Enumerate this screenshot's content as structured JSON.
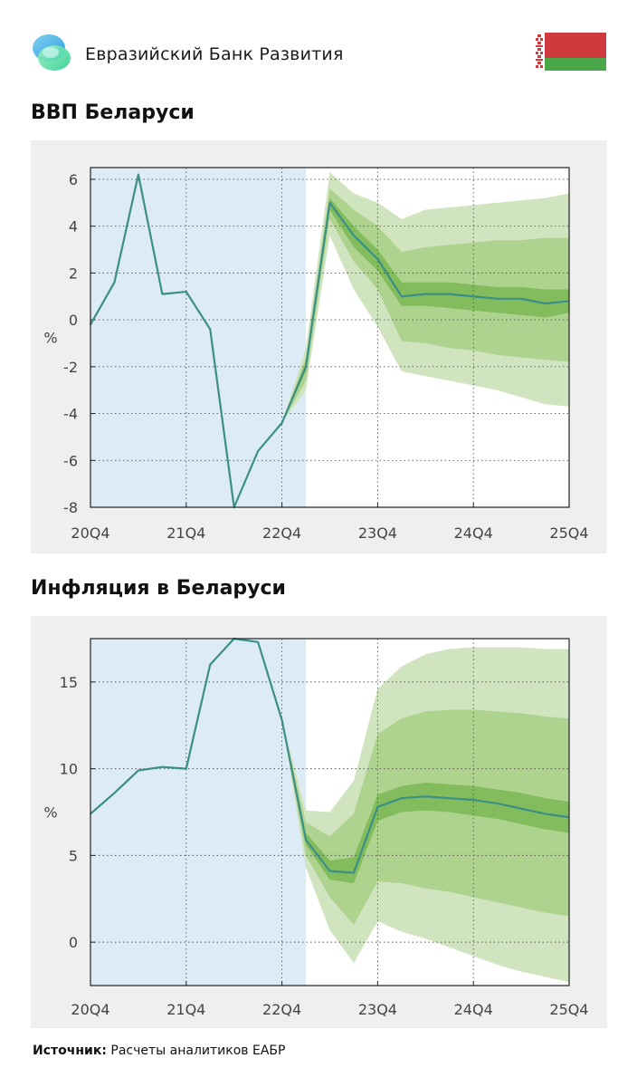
{
  "header": {
    "bank_name": "Евразийский Банк Развития",
    "logo_icon": "eadb-logo-icon",
    "flag_icon": "belarus-flag-icon"
  },
  "source": {
    "label": "Источник:",
    "text": "Расчеты аналитиков ЕАБР"
  },
  "colors": {
    "history_shade": "#dcebf6",
    "line": "#3b8f86",
    "band_outer": "#cfe4bf",
    "band_mid": "#aed38f",
    "band_inner": "#82bc5c"
  },
  "chart_data": [
    {
      "id": "gdp",
      "type": "line",
      "title": "ВВП Беларуси",
      "ylabel": "%",
      "xlabel": "",
      "x_tick_labels": [
        "20Q4",
        "21Q4",
        "22Q4",
        "23Q4",
        "24Q4",
        "25Q4"
      ],
      "xlim": [
        "2020Q4",
        "2025Q4"
      ],
      "ylim": [
        -8,
        6.5
      ],
      "y_ticks": [
        -8,
        -6,
        -4,
        -2,
        0,
        2,
        4,
        6
      ],
      "y_tick_labels": [
        "-8",
        "-6",
        "-4",
        "-2",
        "0",
        "2",
        "4",
        "6"
      ],
      "grid": true,
      "history_shade": [
        "2020Q4",
        "2023Q1"
      ],
      "series": [
        {
          "x": [
            "2020Q4",
            "2021Q1",
            "2021Q2",
            "2021Q3",
            "2021Q4",
            "2022Q1",
            "2022Q2",
            "2022Q3",
            "2022Q4",
            "2023Q1",
            "2023Q2",
            "2023Q3",
            "2023Q4",
            "2024Q1",
            "2024Q2",
            "2024Q3",
            "2024Q4",
            "2025Q1",
            "2025Q2",
            "2025Q3",
            "2025Q4"
          ],
          "values": [
            -0.2,
            1.6,
            6.2,
            1.1,
            1.2,
            -0.4,
            -8.0,
            -5.6,
            -4.4,
            -2.0,
            5.0,
            3.6,
            2.6,
            1.0,
            1.1,
            1.1,
            1.0,
            0.9,
            0.9,
            0.7,
            0.8
          ]
        }
      ],
      "fan": {
        "x": [
          "2022Q4",
          "2023Q1",
          "2023Q2",
          "2023Q3",
          "2023Q4",
          "2024Q1",
          "2024Q2",
          "2024Q3",
          "2024Q4",
          "2025Q1",
          "2025Q2",
          "2025Q3",
          "2025Q4"
        ],
        "outer_upper": [
          -4.4,
          -1.2,
          6.3,
          5.4,
          5.0,
          4.3,
          4.7,
          4.8,
          4.9,
          5.0,
          5.1,
          5.2,
          5.4
        ],
        "outer_lower": [
          -4.4,
          -3.0,
          3.6,
          1.3,
          -0.3,
          -2.2,
          -2.4,
          -2.6,
          -2.8,
          -3.0,
          -3.3,
          -3.6,
          -3.7
        ],
        "mid_upper": [
          -4.4,
          -1.6,
          5.6,
          4.7,
          4.0,
          2.9,
          3.1,
          3.2,
          3.3,
          3.4,
          3.4,
          3.5,
          3.5
        ],
        "mid_lower": [
          -4.4,
          -2.6,
          4.3,
          2.5,
          1.3,
          -0.9,
          -1.0,
          -1.2,
          -1.3,
          -1.5,
          -1.6,
          -1.7,
          -1.8
        ],
        "inner_upper": [
          -4.4,
          -1.8,
          5.2,
          4.0,
          3.0,
          1.6,
          1.6,
          1.6,
          1.5,
          1.4,
          1.4,
          1.3,
          1.3
        ],
        "inner_lower": [
          -4.4,
          -2.2,
          4.7,
          3.1,
          2.1,
          0.6,
          0.6,
          0.5,
          0.4,
          0.3,
          0.2,
          0.1,
          0.3
        ]
      }
    },
    {
      "id": "inflation",
      "type": "line",
      "title": "Инфляция в Беларуси",
      "ylabel": "%",
      "xlabel": "",
      "x_tick_labels": [
        "20Q4",
        "21Q4",
        "22Q4",
        "23Q4",
        "24Q4",
        "25Q4"
      ],
      "xlim": [
        "2020Q4",
        "2025Q4"
      ],
      "ylim": [
        -2.5,
        17.5
      ],
      "y_ticks": [
        0,
        5,
        10,
        15
      ],
      "y_tick_labels": [
        "0",
        "5",
        "10",
        "15"
      ],
      "grid": true,
      "history_shade": [
        "2020Q4",
        "2023Q1"
      ],
      "series": [
        {
          "x": [
            "2020Q4",
            "2021Q1",
            "2021Q2",
            "2021Q3",
            "2021Q4",
            "2022Q1",
            "2022Q2",
            "2022Q3",
            "2022Q4",
            "2023Q1",
            "2023Q2",
            "2023Q3",
            "2023Q4",
            "2024Q1",
            "2024Q2",
            "2024Q3",
            "2024Q4",
            "2025Q1",
            "2025Q2",
            "2025Q3",
            "2025Q4"
          ],
          "values": [
            7.4,
            8.6,
            9.9,
            10.1,
            10.0,
            16.0,
            17.5,
            17.3,
            12.8,
            5.9,
            4.1,
            4.0,
            7.8,
            8.3,
            8.4,
            8.3,
            8.2,
            8.0,
            7.7,
            7.4,
            7.2
          ]
        }
      ],
      "fan": {
        "x": [
          "2022Q4",
          "2023Q1",
          "2023Q2",
          "2023Q3",
          "2023Q4",
          "2024Q1",
          "2024Q2",
          "2024Q3",
          "2024Q4",
          "2025Q1",
          "2025Q2",
          "2025Q3",
          "2025Q4"
        ],
        "outer_upper": [
          12.8,
          7.6,
          7.5,
          9.3,
          14.6,
          15.9,
          16.6,
          16.9,
          17.0,
          17.0,
          17.0,
          16.9,
          16.9
        ],
        "outer_lower": [
          12.8,
          4.3,
          0.7,
          -1.2,
          1.2,
          0.6,
          0.2,
          -0.3,
          -0.8,
          -1.3,
          -1.7,
          -2.0,
          -2.3
        ],
        "mid_upper": [
          12.8,
          6.9,
          6.1,
          7.4,
          12.0,
          12.9,
          13.3,
          13.4,
          13.4,
          13.3,
          13.2,
          13.0,
          12.9
        ],
        "mid_lower": [
          12.8,
          5.0,
          2.6,
          1.0,
          3.5,
          3.4,
          3.1,
          2.9,
          2.6,
          2.3,
          2.0,
          1.7,
          1.5
        ],
        "inner_upper": [
          12.8,
          6.3,
          4.7,
          4.9,
          8.5,
          9.0,
          9.2,
          9.1,
          9.0,
          8.8,
          8.6,
          8.3,
          8.1
        ],
        "inner_lower": [
          12.8,
          5.6,
          3.6,
          3.4,
          7.0,
          7.5,
          7.6,
          7.5,
          7.3,
          7.1,
          6.8,
          6.5,
          6.3
        ]
      }
    }
  ]
}
